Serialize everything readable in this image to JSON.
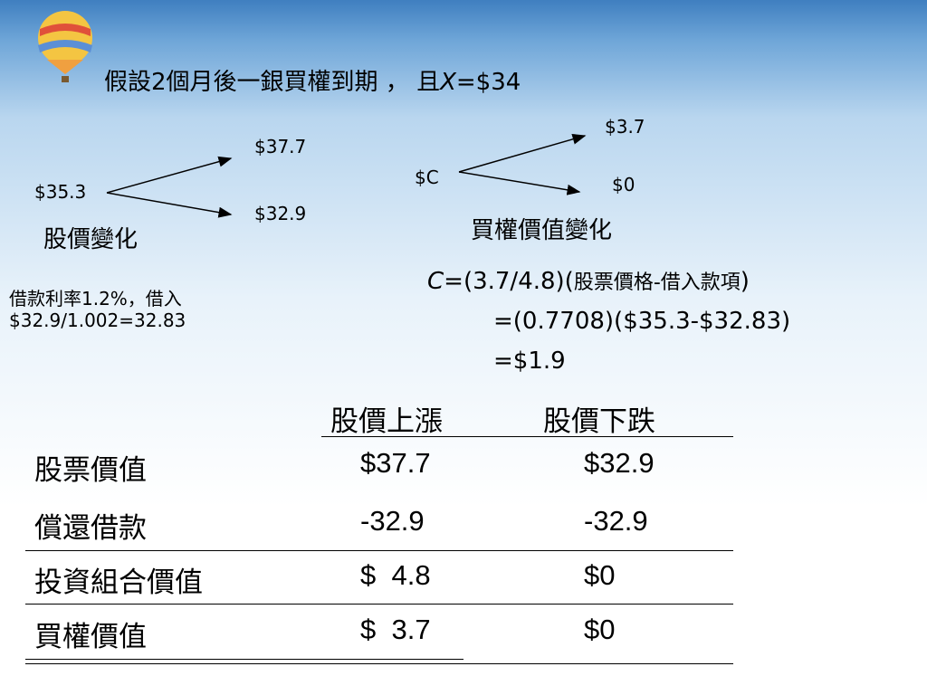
{
  "title": {
    "prefix": "假設2個月後一銀買權到期 ， 且",
    "var": "X",
    "suffix": "=$34"
  },
  "stock_tree": {
    "root": "$35.3",
    "up": "$37.7",
    "down": "$32.9",
    "caption": "股價變化"
  },
  "option_tree": {
    "root": "$C",
    "up": "$3.7",
    "down": "$0",
    "caption": "買權價值變化"
  },
  "loan_note": [
    "借款利率1.2%，借入",
    "$32.9/1.002=32.83"
  ],
  "formula": {
    "var": "C",
    "line1": "=(3.7/4.8)(",
    "line1_cjk": "股票價格-借入款項",
    "line1_end": ")",
    "line2": "=(0.7708)($35.3-$32.83)",
    "line3": "=$1.9"
  },
  "table": {
    "header": [
      "股價上漲",
      "股價下跌"
    ],
    "rows": [
      [
        "股票價值",
        "$37.7",
        "$32.9"
      ],
      [
        "償還借款",
        "-32.9",
        "-32.9"
      ],
      [
        "投資組合價值",
        "$  4.8",
        "$0"
      ],
      [
        "買權價值",
        "$  3.7",
        "$0"
      ]
    ]
  }
}
